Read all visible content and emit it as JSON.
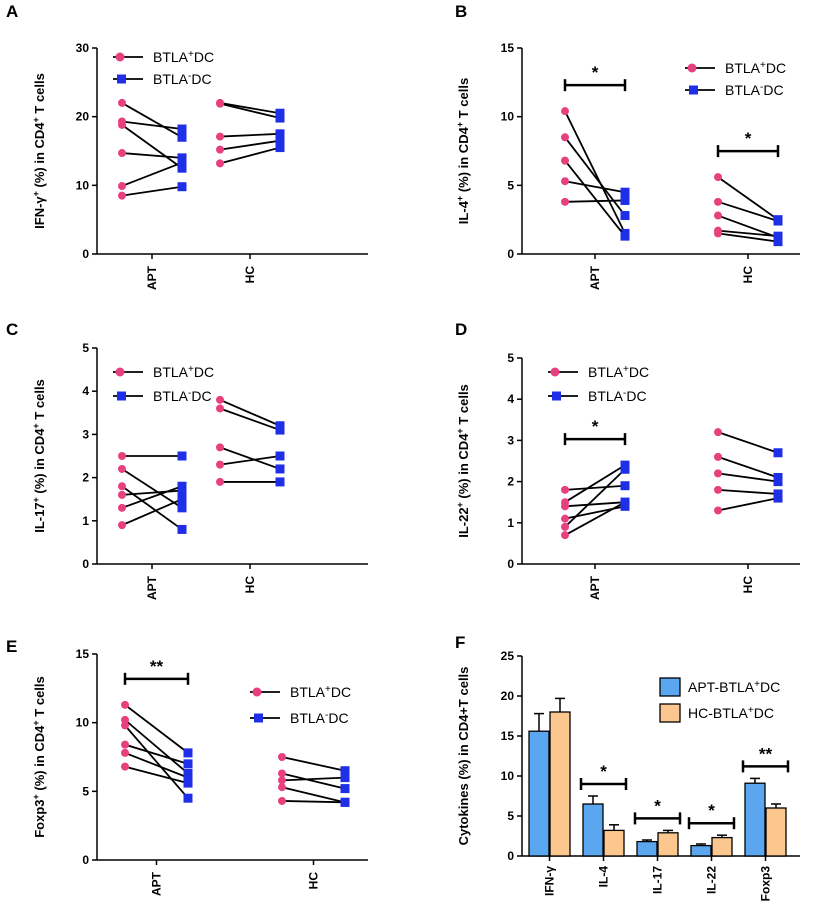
{
  "colors": {
    "pos_marker": "#e8407e",
    "neg_marker": "#1f2fe8",
    "apt_bar": "#5aa7ef",
    "hc_bar": "#fcc78e",
    "line": "#000000"
  },
  "legend_pair": {
    "pos": {
      "prefix": "BTLA",
      "sup": "+",
      "suffix": "DC"
    },
    "neg": {
      "prefix": "BTLA",
      "sup": "-",
      "suffix": "DC"
    }
  },
  "legend_bar": {
    "apt": {
      "prefix": "APT-BTLA",
      "sup": "+",
      "suffix": "DC"
    },
    "hc": {
      "prefix": "HC-BTLA",
      "sup": "+",
      "suffix": "DC"
    }
  },
  "chart_data": [
    {
      "panel": "A",
      "type": "paired-line",
      "ylabel": {
        "prefix": "IFN-γ",
        "sup": "+",
        "mid": " (%) in CD4",
        "sup2": "+",
        "suffix": " T cells"
      },
      "ylim": [
        0,
        30
      ],
      "yticks": [
        0,
        10,
        20,
        30
      ],
      "groups": [
        "APT",
        "HC"
      ],
      "pairs": {
        "APT": [
          [
            22,
            17
          ],
          [
            19.3,
            18.2
          ],
          [
            18.8,
            12.5
          ],
          [
            14.7,
            14
          ],
          [
            9.9,
            13.3
          ],
          [
            8.5,
            9.8
          ]
        ],
        "HC": [
          [
            22,
            20.5
          ],
          [
            21.9,
            19.8
          ],
          [
            17.1,
            17.5
          ],
          [
            15.2,
            16.5
          ],
          [
            13.2,
            15.5
          ]
        ]
      },
      "significance": []
    },
    {
      "panel": "B",
      "type": "paired-line",
      "ylabel": {
        "prefix": "IL-4",
        "sup": "+",
        "mid": " (%) in CD4",
        "sup2": "+",
        "suffix": " T cells"
      },
      "ylim": [
        0,
        15
      ],
      "yticks": [
        0,
        5,
        10,
        15
      ],
      "groups": [
        "APT",
        "HC"
      ],
      "pairs": {
        "APT": [
          [
            10.4,
            1.5
          ],
          [
            8.5,
            2.8
          ],
          [
            6.8,
            1.3
          ],
          [
            5.3,
            4.5
          ],
          [
            3.8,
            3.9
          ]
        ],
        "HC": [
          [
            5.6,
            2.5
          ],
          [
            3.8,
            2.4
          ],
          [
            2.8,
            1.2
          ],
          [
            1.7,
            1.3
          ],
          [
            1.5,
            0.9
          ]
        ]
      },
      "significance": [
        {
          "group": "APT",
          "label": "*"
        },
        {
          "group": "HC",
          "label": "*"
        }
      ]
    },
    {
      "panel": "C",
      "type": "paired-line",
      "ylabel": {
        "prefix": "IL-17",
        "sup": "+",
        "mid": " (%) in CD4",
        "sup2": "+",
        "suffix": " T cells"
      },
      "ylim": [
        0,
        5
      ],
      "yticks": [
        0,
        1,
        2,
        3,
        4,
        5
      ],
      "groups": [
        "APT",
        "HC"
      ],
      "pairs": {
        "APT": [
          [
            2.5,
            2.5
          ],
          [
            2.2,
            1.3
          ],
          [
            1.8,
            0.8
          ],
          [
            1.6,
            1.7
          ],
          [
            1.3,
            1.8
          ],
          [
            0.9,
            1.5
          ]
        ],
        "HC": [
          [
            3.8,
            3.2
          ],
          [
            3.6,
            3.1
          ],
          [
            2.7,
            2.2
          ],
          [
            2.3,
            2.5
          ],
          [
            1.9,
            1.9
          ]
        ]
      },
      "significance": []
    },
    {
      "panel": "D",
      "type": "paired-line",
      "ylabel": {
        "prefix": "IL-22",
        "sup": "+",
        "mid": " (%) in CD4",
        "sup2": "+",
        "suffix": " T cells"
      },
      "ylim": [
        0,
        5
      ],
      "yticks": [
        0,
        1,
        2,
        3,
        4,
        5
      ],
      "groups": [
        "APT",
        "HC"
      ],
      "pairs": {
        "APT": [
          [
            1.8,
            1.9
          ],
          [
            1.5,
            2.4
          ],
          [
            1.4,
            1.5
          ],
          [
            1.1,
            1.4
          ],
          [
            0.9,
            2.3
          ],
          [
            0.7,
            1.5
          ]
        ],
        "HC": [
          [
            3.2,
            2.7
          ],
          [
            2.6,
            2.1
          ],
          [
            2.2,
            2.0
          ],
          [
            1.8,
            1.7
          ],
          [
            1.3,
            1.6
          ]
        ]
      },
      "significance": [
        {
          "group": "APT",
          "label": "*"
        }
      ]
    },
    {
      "panel": "E",
      "type": "paired-line",
      "ylabel": {
        "prefix": "Foxp3",
        "sup": "+",
        "mid": " (%) in CD4",
        "sup2": "+",
        "suffix": " T cells"
      },
      "ylim": [
        0,
        15
      ],
      "yticks": [
        0,
        5,
        10,
        15
      ],
      "groups": [
        "APT",
        "HC"
      ],
      "pairs": {
        "APT": [
          [
            11.3,
            7.8
          ],
          [
            10.2,
            6.3
          ],
          [
            9.8,
            4.5
          ],
          [
            8.4,
            7
          ],
          [
            7.8,
            6
          ],
          [
            6.8,
            5.6
          ]
        ],
        "HC": [
          [
            7.5,
            6.5
          ],
          [
            6.3,
            5.2
          ],
          [
            5.8,
            6.0
          ],
          [
            5.3,
            4.2
          ],
          [
            4.3,
            4.2
          ]
        ]
      },
      "significance": [
        {
          "group": "APT",
          "label": "**"
        }
      ]
    },
    {
      "panel": "F",
      "type": "bar",
      "ylabel": {
        "text": "Cytokines (%) in CD4+T cells"
      },
      "ylim": [
        0,
        25
      ],
      "yticks": [
        0,
        5,
        10,
        15,
        20,
        25
      ],
      "categories": [
        "IFN-γ",
        "IL-4",
        "IL-17",
        "IL-22",
        "Foxp3"
      ],
      "series": [
        {
          "name": "APT-BTLA+DC",
          "values": [
            15.6,
            6.5,
            1.8,
            1.3,
            9.1
          ],
          "errors": [
            2.2,
            1.0,
            0.2,
            0.2,
            0.6
          ]
        },
        {
          "name": "HC-BTLA+DC",
          "values": [
            18.0,
            3.2,
            2.9,
            2.3,
            6.0
          ],
          "errors": [
            1.7,
            0.7,
            0.3,
            0.3,
            0.5
          ]
        }
      ],
      "significance": [
        {
          "category": "IL-4",
          "label": "*"
        },
        {
          "category": "IL-17",
          "label": "*"
        },
        {
          "category": "IL-22",
          "label": "*"
        },
        {
          "category": "Foxp3",
          "label": "**"
        }
      ]
    }
  ]
}
